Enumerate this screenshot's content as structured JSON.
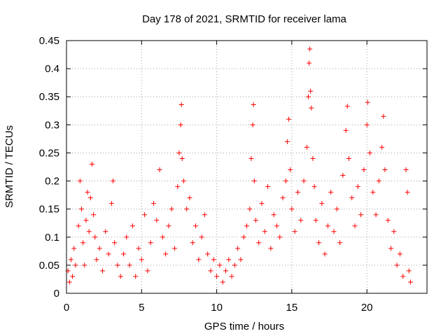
{
  "chart_data": {
    "type": "scatter",
    "title": "Day 178 of 2021, SRMTID for receiver lama",
    "xlabel": "GPS time / hours",
    "ylabel": "SRMTID / TECUs",
    "xlim": [
      0,
      24
    ],
    "ylim": [
      0,
      0.45
    ],
    "x_ticks": [
      0,
      5,
      10,
      15,
      20
    ],
    "x_tick_labels": [
      "0",
      "5",
      "10",
      "15",
      "20"
    ],
    "y_ticks": [
      0,
      0.05,
      0.1,
      0.15,
      0.2,
      0.25,
      0.3,
      0.35,
      0.4,
      0.45
    ],
    "y_tick_labels": [
      "0",
      "0.05",
      "0.1",
      "0.15",
      "0.2",
      "0.25",
      "0.3",
      "0.35",
      "0.4",
      "0.45"
    ],
    "grid": true,
    "marker": "plus",
    "color": "#ff0000",
    "series": [
      {
        "name": "SRMTID",
        "points": [
          [
            0.1,
            0.04
          ],
          [
            0.2,
            0.02
          ],
          [
            0.3,
            0.06
          ],
          [
            0.4,
            0.03
          ],
          [
            0.5,
            0.08
          ],
          [
            0.6,
            0.05
          ],
          [
            0.8,
            0.12
          ],
          [
            0.9,
            0.2
          ],
          [
            1.0,
            0.15
          ],
          [
            1.1,
            0.09
          ],
          [
            1.2,
            0.05
          ],
          [
            1.3,
            0.13
          ],
          [
            1.4,
            0.18
          ],
          [
            1.5,
            0.11
          ],
          [
            1.6,
            0.17
          ],
          [
            1.7,
            0.23
          ],
          [
            1.8,
            0.14
          ],
          [
            1.9,
            0.1
          ],
          [
            2.0,
            0.06
          ],
          [
            2.2,
            0.08
          ],
          [
            2.4,
            0.04
          ],
          [
            2.6,
            0.11
          ],
          [
            2.8,
            0.07
          ],
          [
            3.0,
            0.16
          ],
          [
            3.1,
            0.2
          ],
          [
            3.2,
            0.09
          ],
          [
            3.4,
            0.05
          ],
          [
            3.6,
            0.03
          ],
          [
            3.8,
            0.07
          ],
          [
            4.0,
            0.1
          ],
          [
            4.2,
            0.05
          ],
          [
            4.4,
            0.12
          ],
          [
            4.6,
            0.03
          ],
          [
            4.8,
            0.08
          ],
          [
            5.0,
            0.06
          ],
          [
            5.2,
            0.14
          ],
          [
            5.4,
            0.04
          ],
          [
            5.6,
            0.09
          ],
          [
            5.8,
            0.16
          ],
          [
            6.0,
            0.13
          ],
          [
            6.2,
            0.22
          ],
          [
            6.4,
            0.1
          ],
          [
            6.6,
            0.07
          ],
          [
            6.8,
            0.12
          ],
          [
            7.0,
            0.15
          ],
          [
            7.2,
            0.08
          ],
          [
            7.4,
            0.19
          ],
          [
            7.5,
            0.25
          ],
          [
            7.6,
            0.3
          ],
          [
            7.65,
            0.336
          ],
          [
            7.7,
            0.24
          ],
          [
            7.8,
            0.2
          ],
          [
            8.0,
            0.15
          ],
          [
            8.2,
            0.17
          ],
          [
            8.4,
            0.09
          ],
          [
            8.6,
            0.12
          ],
          [
            8.8,
            0.06
          ],
          [
            9.0,
            0.1
          ],
          [
            9.2,
            0.14
          ],
          [
            9.4,
            0.07
          ],
          [
            9.6,
            0.04
          ],
          [
            9.8,
            0.06
          ],
          [
            10.0,
            0.03
          ],
          [
            10.2,
            0.05
          ],
          [
            10.4,
            0.02
          ],
          [
            10.6,
            0.04
          ],
          [
            10.8,
            0.06
          ],
          [
            11.0,
            0.03
          ],
          [
            11.2,
            0.05
          ],
          [
            11.4,
            0.08
          ],
          [
            11.6,
            0.06
          ],
          [
            11.8,
            0.1
          ],
          [
            12.0,
            0.12
          ],
          [
            12.2,
            0.15
          ],
          [
            12.3,
            0.24
          ],
          [
            12.4,
            0.3
          ],
          [
            12.45,
            0.336
          ],
          [
            12.5,
            0.2
          ],
          [
            12.6,
            0.13
          ],
          [
            12.8,
            0.09
          ],
          [
            13.0,
            0.16
          ],
          [
            13.2,
            0.11
          ],
          [
            13.4,
            0.19
          ],
          [
            13.6,
            0.08
          ],
          [
            13.8,
            0.14
          ],
          [
            14.0,
            0.12
          ],
          [
            14.2,
            0.1
          ],
          [
            14.4,
            0.17
          ],
          [
            14.6,
            0.2
          ],
          [
            14.7,
            0.27
          ],
          [
            14.8,
            0.31
          ],
          [
            14.9,
            0.22
          ],
          [
            15.0,
            0.15
          ],
          [
            15.2,
            0.11
          ],
          [
            15.4,
            0.18
          ],
          [
            15.6,
            0.13
          ],
          [
            15.8,
            0.2
          ],
          [
            16.0,
            0.26
          ],
          [
            16.1,
            0.35
          ],
          [
            16.15,
            0.41
          ],
          [
            16.2,
            0.435
          ],
          [
            16.25,
            0.36
          ],
          [
            16.3,
            0.33
          ],
          [
            16.4,
            0.24
          ],
          [
            16.5,
            0.19
          ],
          [
            16.6,
            0.13
          ],
          [
            16.8,
            0.09
          ],
          [
            17.0,
            0.16
          ],
          [
            17.2,
            0.07
          ],
          [
            17.4,
            0.12
          ],
          [
            17.6,
            0.18
          ],
          [
            17.8,
            0.11
          ],
          [
            18.0,
            0.15
          ],
          [
            18.2,
            0.09
          ],
          [
            18.4,
            0.21
          ],
          [
            18.6,
            0.29
          ],
          [
            18.7,
            0.333
          ],
          [
            18.8,
            0.24
          ],
          [
            19.0,
            0.17
          ],
          [
            19.2,
            0.12
          ],
          [
            19.4,
            0.19
          ],
          [
            19.6,
            0.14
          ],
          [
            19.8,
            0.22
          ],
          [
            20.0,
            0.3
          ],
          [
            20.05,
            0.34
          ],
          [
            20.2,
            0.25
          ],
          [
            20.4,
            0.18
          ],
          [
            20.6,
            0.14
          ],
          [
            20.8,
            0.2
          ],
          [
            21.0,
            0.26
          ],
          [
            21.1,
            0.315
          ],
          [
            21.2,
            0.22
          ],
          [
            21.4,
            0.13
          ],
          [
            21.6,
            0.08
          ],
          [
            21.8,
            0.11
          ],
          [
            22.0,
            0.05
          ],
          [
            22.2,
            0.07
          ],
          [
            22.4,
            0.03
          ],
          [
            22.6,
            0.22
          ],
          [
            22.7,
            0.18
          ],
          [
            22.8,
            0.04
          ],
          [
            22.9,
            0.02
          ]
        ]
      }
    ]
  }
}
